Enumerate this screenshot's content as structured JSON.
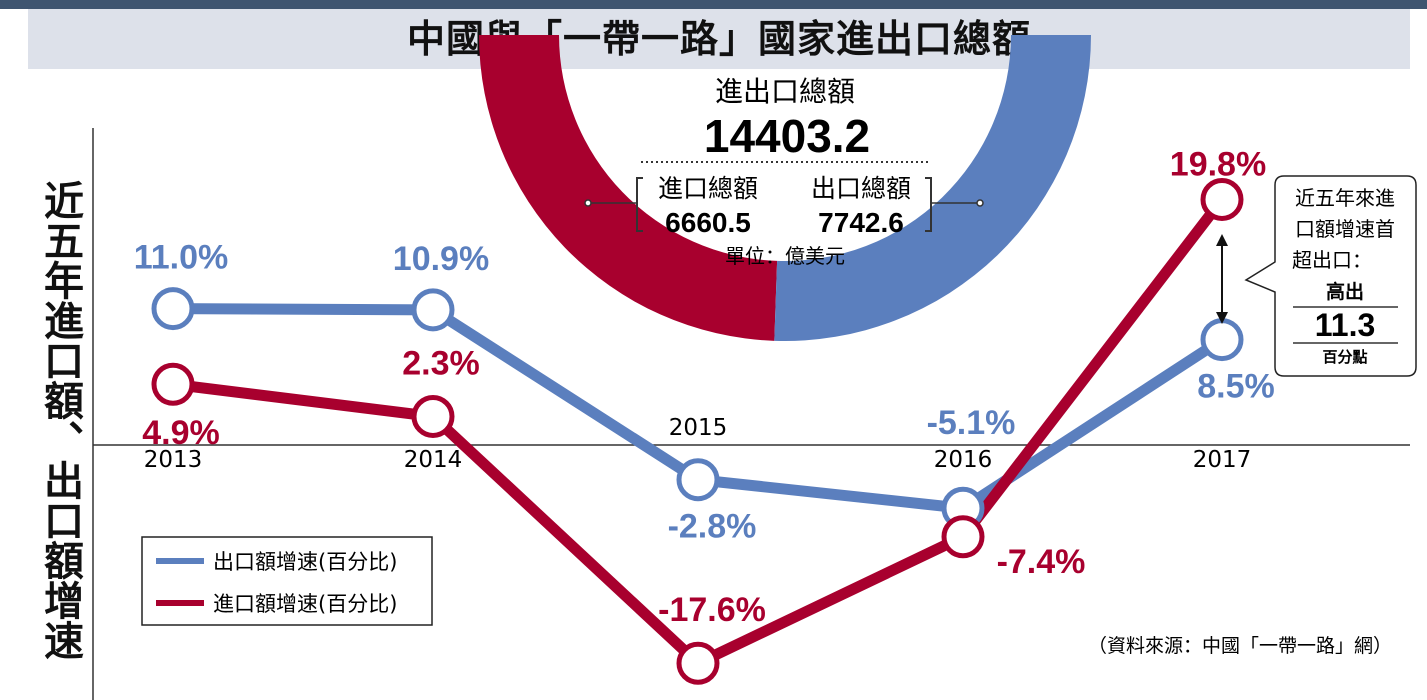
{
  "page_title": "中國與「一帶一路」國家進出口總額",
  "side_title": "近五年進口額、出口額增速",
  "donut": {
    "total_label": "進出口總額",
    "total_value": "14403.2",
    "import_label": "進口總額",
    "import_value": "6660.5",
    "export_label": "出口總額",
    "export_value": "7742.6",
    "unit": "單位：億美元"
  },
  "callout": {
    "lines": [
      "近五年來進",
      "口額增速首",
      "超出口："
    ],
    "prefix": "高出",
    "value": "11.3",
    "suffix": "百分點"
  },
  "source": "（資料來源：中國「一帶一路」網）",
  "colors": {
    "export": "#5b7fbe",
    "import": "#a8002e",
    "title_bg": "#dde1ea"
  },
  "chart_data": {
    "type": "line",
    "x": [
      "2013",
      "2014",
      "2015",
      "2016",
      "2017"
    ],
    "ylim": [
      -20,
      20
    ],
    "series": [
      {
        "name": "出口額增速(百分比)",
        "values": [
          11.0,
          10.9,
          -2.8,
          -5.1,
          8.5
        ],
        "labels": [
          "11.0%",
          "10.9%",
          "-2.8%",
          "-5.1%",
          "8.5%"
        ]
      },
      {
        "name": "進口額增速(百分比)",
        "values": [
          4.9,
          2.3,
          -17.6,
          -7.4,
          19.8
        ],
        "labels": [
          "4.9%",
          "2.3%",
          "-17.6%",
          "-7.4%",
          "19.8%"
        ]
      }
    ],
    "donut_values": {
      "import": 6660.5,
      "export": 7742.6
    }
  }
}
